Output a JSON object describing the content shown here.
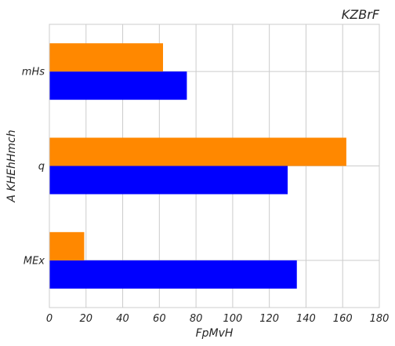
{
  "chart_data": {
    "type": "bar",
    "orientation": "horizontal",
    "title": "KZBrF",
    "xlabel": "FpMvH",
    "ylabel": "A KHEhHmch",
    "categories": [
      "MEx",
      "q",
      "mHs"
    ],
    "series": [
      {
        "values": [
          135,
          130,
          75
        ],
        "color": "#0000ff"
      },
      {
        "values": [
          19,
          162,
          62
        ],
        "color": "#ff8800"
      }
    ],
    "xlim": [
      0,
      180
    ],
    "xticks": [
      0,
      20,
      40,
      60,
      80,
      100,
      120,
      140,
      160,
      180
    ],
    "grid": true,
    "legend": "none"
  }
}
